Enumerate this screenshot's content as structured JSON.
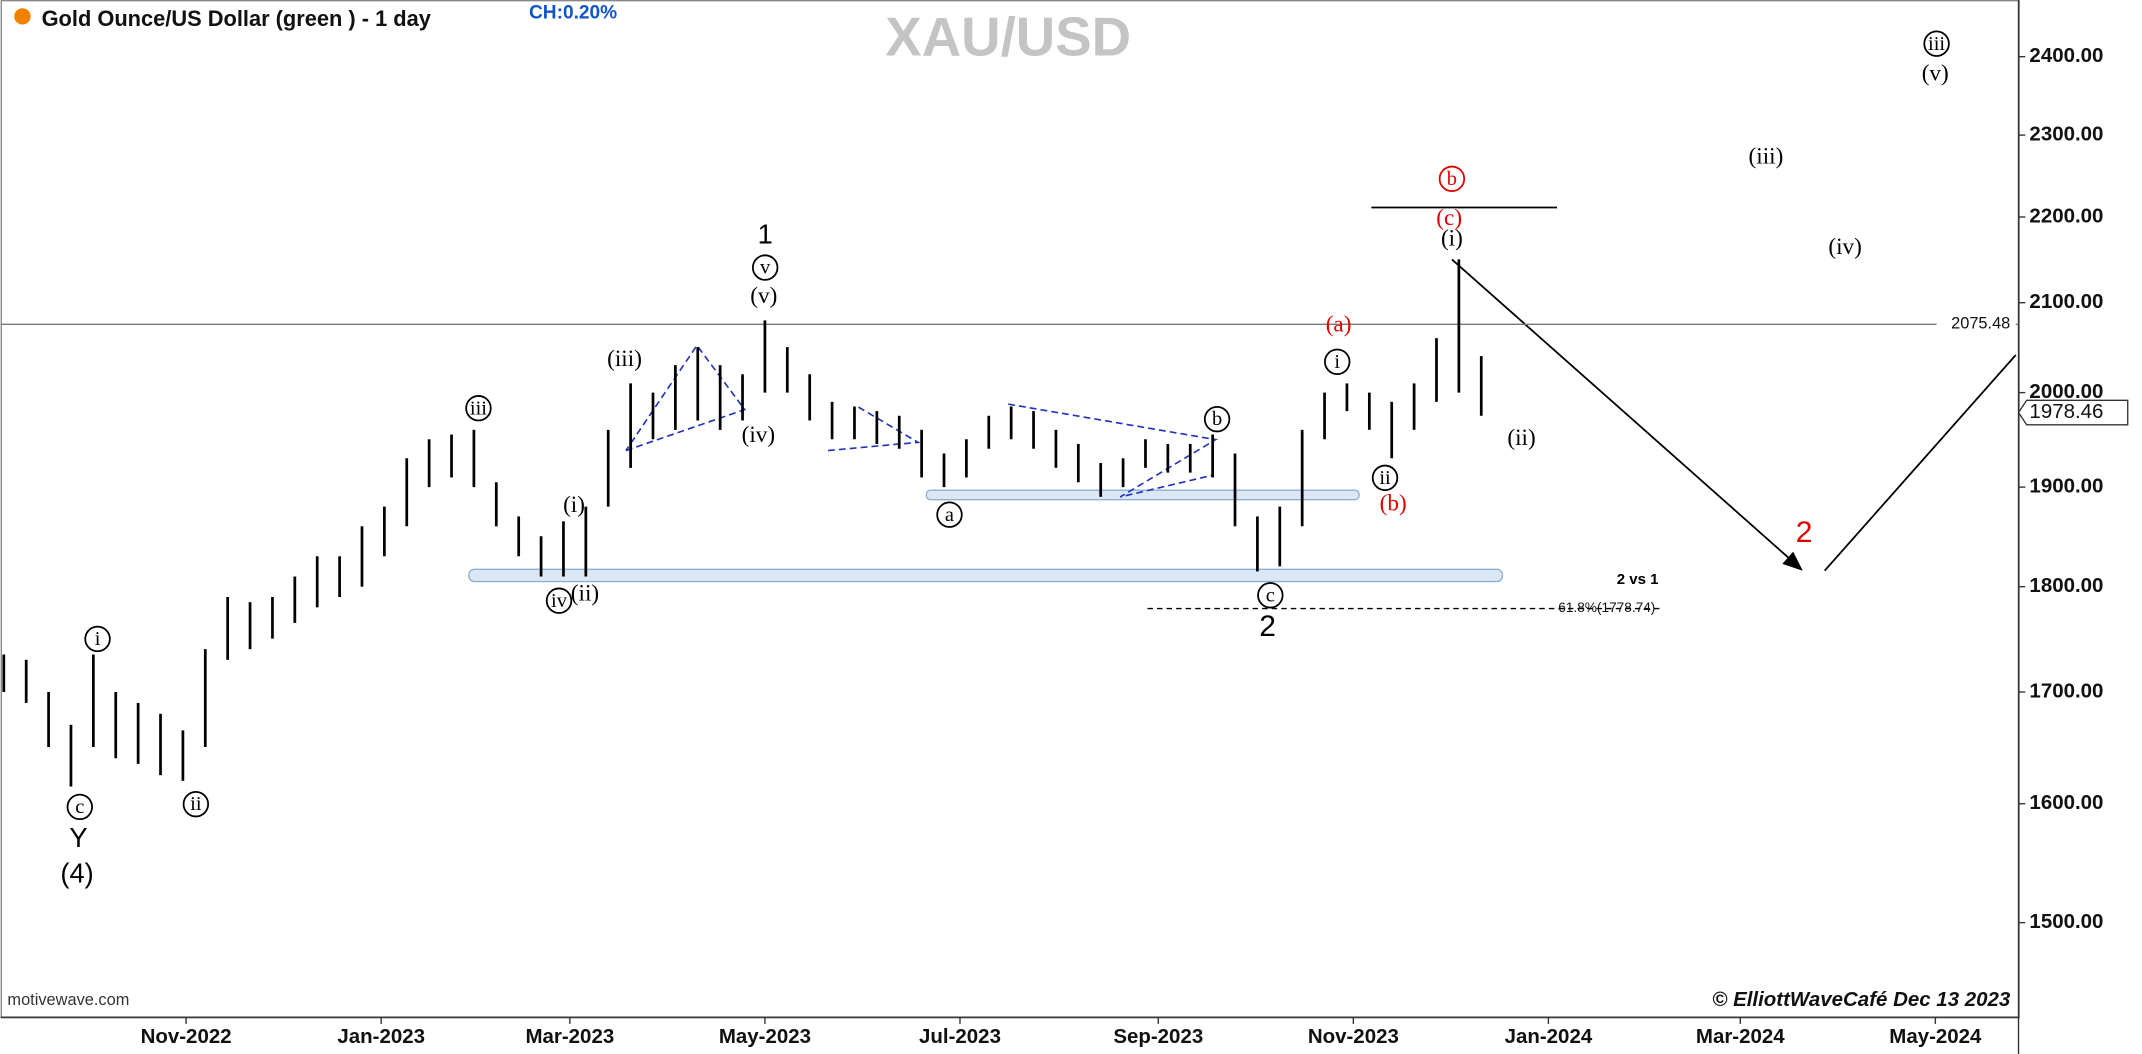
{
  "chart_data": {
    "type": "ohlc",
    "title": "Gold Ounce/US Dollar (green ) - 1 day",
    "change_label": "CH:0.20%",
    "watermark": "XAU/USD",
    "source": "motivewave.com",
    "credit": "© ElliottWaveCafé Dec 13 2023",
    "color": "#000000",
    "log_scale": true,
    "x": [
      "2022-09-05",
      "2022-09-12",
      "2022-09-19",
      "2022-09-26",
      "2022-10-03",
      "2022-10-10",
      "2022-10-17",
      "2022-10-24",
      "2022-10-31",
      "2022-11-07",
      "2022-11-14",
      "2022-11-21",
      "2022-11-28",
      "2022-12-05",
      "2022-12-12",
      "2022-12-19",
      "2022-12-26",
      "2023-01-02",
      "2023-01-09",
      "2023-01-16",
      "2023-01-23",
      "2023-01-30",
      "2023-02-06",
      "2023-02-13",
      "2023-02-20",
      "2023-02-27",
      "2023-03-06",
      "2023-03-13",
      "2023-03-20",
      "2023-03-27",
      "2023-04-03",
      "2023-04-10",
      "2023-04-17",
      "2023-04-24",
      "2023-05-01",
      "2023-05-08",
      "2023-05-15",
      "2023-05-22",
      "2023-05-29",
      "2023-06-05",
      "2023-06-12",
      "2023-06-19",
      "2023-06-26",
      "2023-07-03",
      "2023-07-10",
      "2023-07-17",
      "2023-07-24",
      "2023-07-31",
      "2023-08-07",
      "2023-08-14",
      "2023-08-21",
      "2023-08-28",
      "2023-09-04",
      "2023-09-11",
      "2023-09-18",
      "2023-09-25",
      "2023-10-02",
      "2023-10-09",
      "2023-10-16",
      "2023-10-23",
      "2023-10-30",
      "2023-11-06",
      "2023-11-13",
      "2023-11-20",
      "2023-11-27",
      "2023-12-04",
      "2023-12-11"
    ],
    "high": [
      1735,
      1730,
      1700,
      1670,
      1735,
      1700,
      1690,
      1680,
      1665,
      1740,
      1790,
      1785,
      1790,
      1810,
      1830,
      1830,
      1860,
      1880,
      1930,
      1950,
      1955,
      1960,
      1905,
      1870,
      1850,
      1865,
      1880,
      1960,
      2010,
      2000,
      2030,
      2050,
      2030,
      2020,
      2080,
      2050,
      2020,
      1990,
      1985,
      1980,
      1975,
      1960,
      1935,
      1950,
      1975,
      1985,
      1980,
      1960,
      1945,
      1925,
      1930,
      1950,
      1945,
      1945,
      1955,
      1935,
      1870,
      1880,
      1960,
      2000,
      2010,
      2000,
      1990,
      2010,
      2060,
      2150,
      2040
    ],
    "low": [
      1700,
      1690,
      1650,
      1615,
      1650,
      1640,
      1635,
      1625,
      1620,
      1650,
      1730,
      1740,
      1750,
      1765,
      1780,
      1790,
      1800,
      1830,
      1860,
      1900,
      1910,
      1900,
      1860,
      1830,
      1810,
      1810,
      1810,
      1880,
      1920,
      1950,
      1960,
      1970,
      1960,
      1970,
      2000,
      2000,
      1970,
      1950,
      1950,
      1945,
      1940,
      1910,
      1900,
      1910,
      1940,
      1950,
      1940,
      1920,
      1905,
      1890,
      1900,
      1920,
      1915,
      1915,
      1910,
      1860,
      1815,
      1820,
      1860,
      1950,
      1980,
      1960,
      1930,
      1960,
      1990,
      2000,
      1975
    ],
    "xlim": [
      "2022-09-04",
      "2024-05-27"
    ],
    "xticks": [
      {
        "value": "2022-11-01",
        "label": "Nov-2022"
      },
      {
        "value": "2023-01-01",
        "label": "Jan-2023"
      },
      {
        "value": "2023-03-01",
        "label": "Mar-2023"
      },
      {
        "value": "2023-05-01",
        "label": "May-2023"
      },
      {
        "value": "2023-07-01",
        "label": "Jul-2023"
      },
      {
        "value": "2023-09-01",
        "label": "Sep-2023"
      },
      {
        "value": "2023-11-01",
        "label": "Nov-2023"
      },
      {
        "value": "2024-01-01",
        "label": "Jan-2024"
      },
      {
        "value": "2024-03-01",
        "label": "Mar-2024"
      },
      {
        "value": "2024-05-01",
        "label": "May-2024"
      }
    ],
    "ylim": [
      1425,
      2475
    ],
    "yticks": [
      {
        "value": 1500,
        "label": "1500.00"
      },
      {
        "value": 1600,
        "label": "1600.00"
      },
      {
        "value": 1700,
        "label": "1700.00"
      },
      {
        "value": 1800,
        "label": "1800.00"
      },
      {
        "value": 1900,
        "label": "1900.00"
      },
      {
        "value": 2000,
        "label": "2000.00"
      },
      {
        "value": 2100,
        "label": "2100.00"
      },
      {
        "value": 2200,
        "label": "2200.00"
      },
      {
        "value": 2300,
        "label": "2300.00"
      },
      {
        "value": 2400,
        "label": "2400.00"
      }
    ],
    "hline": 2075.48,
    "last_price": 1978.46,
    "fib_line": 1778.74,
    "fib_label": "61.8%(1778.74)",
    "annotations": [
      {
        "text": "1",
        "circled": false,
        "color": "#000000"
      },
      {
        "text": "v",
        "circled": true,
        "color": "#000000"
      },
      {
        "text": "(v)",
        "circled": false,
        "color": "#000000"
      },
      {
        "text": "(iii)",
        "circled": false,
        "color": "#000000"
      },
      {
        "text": "(iv)",
        "circled": false,
        "color": "#000000"
      },
      {
        "text": "iii",
        "circled": true,
        "color": "#000000"
      },
      {
        "text": "(i)",
        "circled": false,
        "color": "#000000"
      },
      {
        "text": "(ii)",
        "circled": false,
        "color": "#000000"
      },
      {
        "text": "iv",
        "circled": true,
        "color": "#000000"
      },
      {
        "text": "i",
        "circled": true,
        "color": "#000000"
      },
      {
        "text": "ii",
        "circled": true,
        "color": "#000000"
      },
      {
        "text": "c",
        "circled": true,
        "color": "#000000"
      },
      {
        "text": "Y",
        "circled": false,
        "color": "#000000"
      },
      {
        "text": "(4)",
        "circled": false,
        "color": "#000000"
      },
      {
        "text": "a",
        "circled": true,
        "color": "#000000"
      },
      {
        "text": "b",
        "circled": true,
        "color": "#000000"
      },
      {
        "text": "c",
        "circled": true,
        "color": "#000000"
      },
      {
        "text": "2",
        "circled": false,
        "color": "#000000"
      },
      {
        "text": "(a)",
        "circled": false,
        "color": "#e00000"
      },
      {
        "text": "i",
        "circled": true,
        "color": "#000000"
      },
      {
        "text": "ii",
        "circled": true,
        "color": "#000000"
      },
      {
        "text": "(b)",
        "circled": false,
        "color": "#e00000"
      },
      {
        "text": "(ii)",
        "circled": false,
        "color": "#000000"
      },
      {
        "text": "(i)",
        "circled": false,
        "color": "#000000"
      },
      {
        "text": "(c)",
        "circled": false,
        "color": "#e00000"
      },
      {
        "text": "b",
        "circled": true,
        "color": "#e00000"
      },
      {
        "text": "2",
        "circled": false,
        "color": "#e00000"
      },
      {
        "text": "(iii)",
        "circled": false,
        "color": "#000000"
      },
      {
        "text": "(iv)",
        "circled": false,
        "color": "#000000"
      },
      {
        "text": "iii",
        "circled": true,
        "color": "#000000"
      },
      {
        "text": "(v)",
        "circled": false,
        "color": "#000000"
      },
      {
        "text": "2 vs 1",
        "circled": false,
        "color": "#000000"
      }
    ]
  }
}
